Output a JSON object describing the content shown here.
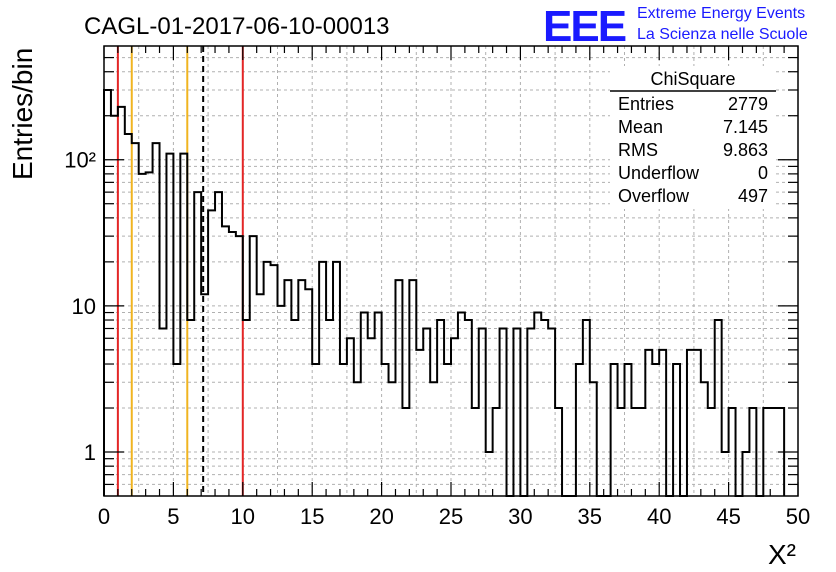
{
  "header": {
    "title": "CAGL-01-2017-06-10-00013",
    "logo_text": "EEE",
    "logo_line1": "Extreme Energy Events",
    "logo_line2": "La Scienza nelle Scuole"
  },
  "stats_box": {
    "title": "ChiSquare",
    "rows": [
      {
        "label": "Entries",
        "value": "2779"
      },
      {
        "label": "Mean",
        "value": "7.145"
      },
      {
        "label": "RMS",
        "value": "9.863"
      },
      {
        "label": "Underflow",
        "value": "0"
      },
      {
        "label": "Overflow",
        "value": "497"
      }
    ]
  },
  "chart_data": {
    "type": "histogram",
    "title": "CAGL-01-2017-06-10-00013",
    "xlabel": "X²",
    "ylabel": "Entries/bin",
    "xlim": [
      0,
      50
    ],
    "ylim": [
      0.5,
      600
    ],
    "y_scale": "log",
    "grid": true,
    "bin_width": 0.5,
    "bin_counts": [
      300,
      200,
      230,
      150,
      130,
      80,
      82,
      130,
      7,
      110,
      4,
      110,
      8,
      60,
      12,
      45,
      60,
      35,
      32,
      30,
      8,
      30,
      12,
      20,
      19,
      10,
      15,
      8,
      15,
      13,
      4,
      20,
      8,
      20,
      4,
      6,
      3,
      9,
      6,
      9,
      4,
      3,
      15,
      2,
      15,
      5,
      7,
      3,
      8,
      4,
      6,
      9,
      8,
      2,
      7,
      1,
      2,
      7,
      0.3,
      7,
      0.3,
      7,
      9,
      8,
      7,
      2,
      0.3,
      0.3,
      4,
      8,
      3,
      0.3,
      0.3,
      4,
      2,
      4,
      2,
      2,
      5,
      4,
      5,
      0.3,
      4,
      0.3,
      5,
      5,
      3,
      2,
      8,
      1,
      2,
      0.3,
      1,
      2,
      0.3,
      2,
      2,
      2
    ],
    "x_ticks": [
      "0",
      "5",
      "10",
      "15",
      "20",
      "25",
      "30",
      "35",
      "40",
      "45",
      "50"
    ],
    "y_ticks": [
      {
        "value": 1,
        "label": "1"
      },
      {
        "value": 10,
        "label": "10"
      },
      {
        "value": 100,
        "label": "10²"
      }
    ],
    "vertical_lines": [
      {
        "x": 1,
        "color": "#e32626",
        "style": "solid"
      },
      {
        "x": 2,
        "color": "#f0b420",
        "style": "solid"
      },
      {
        "x": 6,
        "color": "#f0b420",
        "style": "solid"
      },
      {
        "x": 7.145,
        "color": "#000000",
        "style": "dashed"
      },
      {
        "x": 10,
        "color": "#e32626",
        "style": "solid"
      }
    ]
  }
}
